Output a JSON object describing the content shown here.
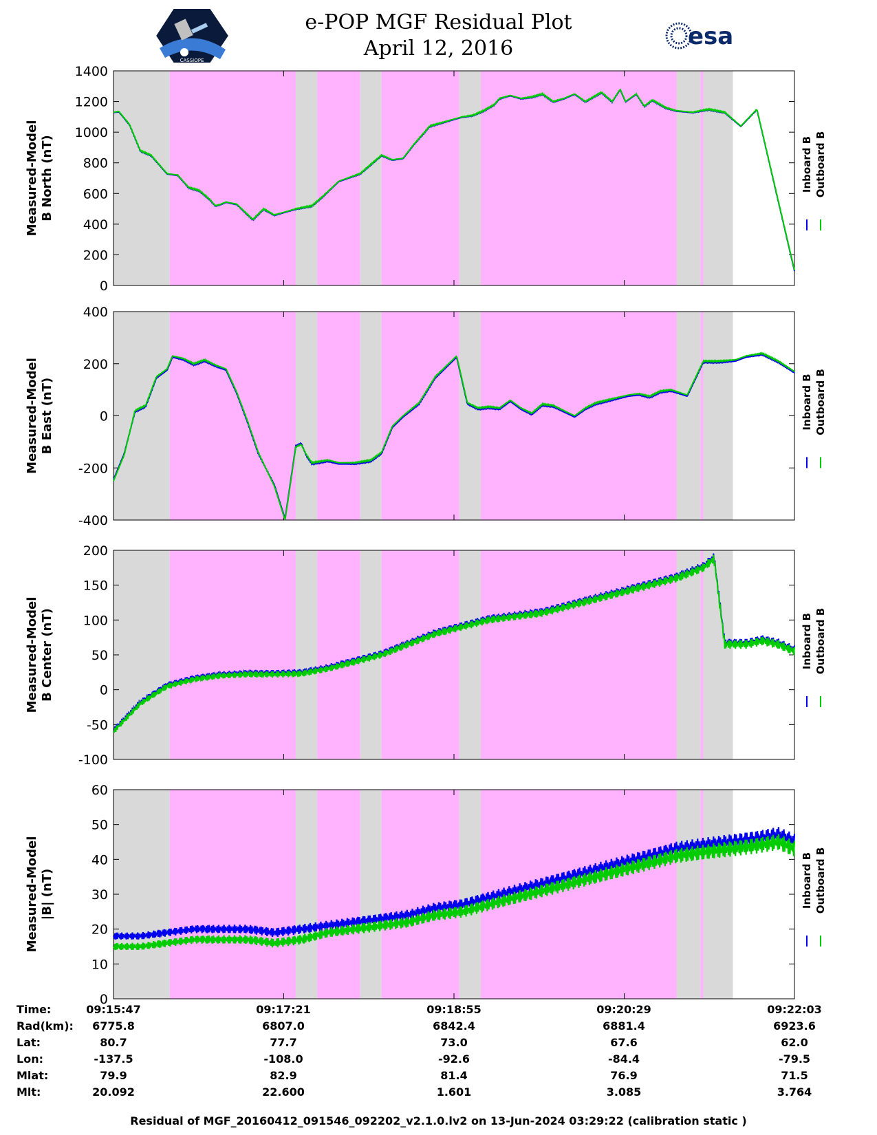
{
  "header": {
    "title_line1": "e-POP MGF Residual Plot",
    "title_line2": "April 12, 2016",
    "esa_logo_text": "esa",
    "cassiope_logo_text": "CASSIOPE",
    "logo_icons": [
      "cassiope-mission-logo",
      "esa-logo"
    ]
  },
  "colors": {
    "inboard": "#0000ee",
    "outboard": "#00cc00",
    "background_grey": "#d9d9d9",
    "background_pink": "#ffb3ff"
  },
  "legend": {
    "inboard_label": "Inboard B",
    "outboard_label": "Outboard B"
  },
  "chart_data": [
    {
      "type": "line",
      "title": "",
      "ylabel_line1": "Measured-Model",
      "ylabel_line2": "B North (nT)",
      "ylim": [
        0,
        1400
      ],
      "yticks": [
        "0",
        "200",
        "400",
        "600",
        "800",
        "1000",
        "1200",
        "1400"
      ],
      "x_minutes": [
        0,
        0.1,
        0.3,
        0.5,
        0.7,
        1.0,
        1.2,
        1.4,
        1.6,
        1.8,
        1.9,
        2.0,
        2.1,
        2.3,
        2.6,
        2.8,
        3.0,
        3.2,
        3.4,
        3.7,
        3.9,
        4.2,
        4.6,
        5.0,
        5.2,
        5.4,
        5.6,
        5.9,
        6.1,
        6.3,
        6.5,
        6.7,
        6.9,
        7.1,
        7.2,
        7.4,
        7.6,
        7.8,
        8.0,
        8.2,
        8.4,
        8.6,
        8.8,
        9.1,
        9.3,
        9.45,
        9.55,
        9.75,
        9.9,
        10.05,
        10.3,
        10.5,
        10.8,
        11.1,
        11.4,
        11.7,
        12.0,
        12.7
      ],
      "series": [
        {
          "name": "Inboard B",
          "values": [
            1130,
            1135,
            1050,
            880,
            850,
            730,
            720,
            640,
            620,
            560,
            520,
            530,
            545,
            530,
            430,
            500,
            460,
            480,
            500,
            520,
            580,
            680,
            730,
            850,
            820,
            830,
            920,
            1040,
            1060,
            1080,
            1100,
            1110,
            1140,
            1180,
            1220,
            1240,
            1220,
            1230,
            1250,
            1200,
            1220,
            1250,
            1200,
            1260,
            1200,
            1280,
            1200,
            1250,
            1170,
            1210,
            1160,
            1140,
            1130,
            1150,
            1130,
            1040,
            1150,
            100
          ]
        },
        {
          "name": "Outboard B",
          "values": [
            1128,
            1132,
            1047,
            877,
            847,
            727,
            717,
            637,
            617,
            557,
            517,
            527,
            542,
            527,
            427,
            497,
            457,
            477,
            497,
            517,
            577,
            677,
            727,
            847,
            817,
            827,
            917,
            1037,
            1057,
            1077,
            1097,
            1107,
            1137,
            1177,
            1217,
            1237,
            1217,
            1227,
            1247,
            1197,
            1217,
            1247,
            1197,
            1257,
            1197,
            1277,
            1197,
            1247,
            1167,
            1207,
            1157,
            1137,
            1127,
            1147,
            1127,
            1037,
            1147,
            95
          ]
        }
      ]
    },
    {
      "type": "line",
      "title": "",
      "ylabel_line1": "Measured-Model",
      "ylabel_line2": "B East (nT)",
      "ylim": [
        -400,
        400
      ],
      "yticks": [
        "-400",
        "-200",
        "0",
        "200",
        "400"
      ],
      "x_minutes": [
        0,
        0.2,
        0.4,
        0.6,
        0.8,
        1.0,
        1.1,
        1.3,
        1.5,
        1.7,
        1.9,
        2.1,
        2.3,
        2.5,
        2.7,
        3.0,
        3.2,
        3.4,
        3.5,
        3.6,
        3.7,
        4.0,
        4.2,
        4.5,
        4.8,
        5.0,
        5.2,
        5.4,
        5.7,
        6.0,
        6.4,
        6.6,
        6.8,
        7.0,
        7.2,
        7.4,
        7.6,
        7.8,
        8.0,
        8.2,
        8.4,
        8.6,
        8.8,
        9.0,
        9.2,
        9.4,
        9.6,
        9.8,
        10.0,
        10.2,
        10.4,
        10.7,
        11.0,
        11.3,
        11.6,
        11.8,
        12.1,
        12.4,
        12.7
      ],
      "series": [
        {
          "name": "Inboard B",
          "values": [
            -250,
            -150,
            20,
            40,
            150,
            180,
            230,
            220,
            200,
            215,
            195,
            180,
            90,
            -20,
            -140,
            -270,
            -400,
            -120,
            -110,
            -150,
            -180,
            -170,
            -180,
            -180,
            -170,
            -140,
            -40,
            0,
            50,
            150,
            230,
            50,
            30,
            35,
            30,
            60,
            30,
            10,
            45,
            40,
            20,
            0,
            30,
            50,
            60,
            70,
            80,
            85,
            75,
            95,
            100,
            80,
            210,
            210,
            215,
            230,
            240,
            210,
            170
          ]
        },
        {
          "name": "Outboard B",
          "values": [
            -245,
            -145,
            15,
            35,
            145,
            175,
            225,
            215,
            195,
            210,
            190,
            175,
            85,
            -25,
            -145,
            -265,
            -395,
            -115,
            -105,
            -155,
            -185,
            -175,
            -185,
            -185,
            -175,
            -145,
            -45,
            -5,
            45,
            145,
            225,
            45,
            25,
            30,
            25,
            55,
            25,
            5,
            40,
            35,
            15,
            -5,
            25,
            45,
            55,
            65,
            75,
            80,
            70,
            90,
            95,
            75,
            205,
            205,
            210,
            225,
            235,
            205,
            165
          ]
        }
      ]
    },
    {
      "type": "line",
      "title": "",
      "ylabel_line1": "Measured-Model",
      "ylabel_line2": "B Center (nT)",
      "ylim": [
        -100,
        200
      ],
      "yticks": [
        "-100",
        "-50",
        "0",
        "50",
        "100",
        "150",
        "200"
      ],
      "x_minutes": [
        0,
        0.5,
        1.0,
        1.5,
        2.0,
        2.5,
        3.0,
        3.5,
        4.0,
        4.5,
        5.0,
        5.5,
        6.0,
        6.5,
        7.0,
        7.5,
        8.0,
        8.5,
        9.0,
        9.5,
        10.0,
        10.5,
        11.0,
        11.2,
        11.4,
        11.6,
        11.8,
        12.1,
        12.4,
        12.7
      ],
      "series": [
        {
          "name": "Inboard B",
          "values": [
            -60,
            -20,
            5,
            15,
            20,
            22,
            22,
            23,
            30,
            40,
            50,
            65,
            80,
            90,
            100,
            105,
            110,
            120,
            130,
            140,
            150,
            160,
            175,
            188,
            65,
            65,
            65,
            70,
            65,
            55
          ]
        },
        {
          "name": "Outboard B",
          "values": [
            -58,
            -18,
            7,
            17,
            22,
            24,
            24,
            25,
            32,
            42,
            52,
            67,
            82,
            92,
            102,
            107,
            112,
            122,
            132,
            142,
            152,
            162,
            177,
            190,
            67,
            67,
            67,
            72,
            67,
            57
          ]
        }
      ]
    },
    {
      "type": "line",
      "title": "",
      "ylabel_line1": "Measured-Model",
      "ylabel_line2": "|B| (nT)",
      "ylim": [
        0,
        60
      ],
      "yticks": [
        "0",
        "10",
        "20",
        "30",
        "40",
        "50",
        "60"
      ],
      "x_minutes": [
        0,
        0.5,
        1.0,
        1.5,
        2.0,
        2.5,
        3.0,
        3.5,
        4.0,
        4.5,
        5.0,
        5.5,
        6.0,
        6.5,
        7.0,
        7.5,
        8.0,
        8.5,
        9.0,
        9.5,
        10.0,
        10.5,
        11.0,
        11.5,
        12.0,
        12.4,
        12.7
      ],
      "series": [
        {
          "name": "Inboard B",
          "values": [
            15,
            15,
            16,
            17,
            17,
            17,
            16,
            17,
            19,
            20,
            21,
            22,
            24,
            25,
            27,
            29,
            31,
            33,
            35,
            37,
            39,
            41,
            42,
            43,
            44,
            45,
            43
          ]
        },
        {
          "name": "Outboard B",
          "values": [
            18,
            18,
            19,
            20,
            20,
            20,
            19,
            20,
            21,
            22,
            23,
            24,
            26,
            27,
            29,
            31,
            33,
            35,
            37,
            39,
            41,
            43,
            44,
            45,
            46,
            47,
            45
          ]
        }
      ]
    }
  ],
  "info_table": {
    "labels": [
      "Time:",
      "Rad(km):",
      "Lat:",
      "Lon:",
      "Mlat:",
      "Mlt:"
    ],
    "columns": [
      [
        "09:15:47",
        "6775.8",
        "80.7",
        "-137.5",
        "79.9",
        "20.092"
      ],
      [
        "09:17:21",
        "6807.0",
        "77.7",
        "-108.0",
        "82.9",
        "22.600"
      ],
      [
        "09:18:55",
        "6842.4",
        "73.0",
        "-92.6",
        "81.4",
        "1.601"
      ],
      [
        "09:20:29",
        "6881.4",
        "67.6",
        "-84.4",
        "76.9",
        "3.085"
      ],
      [
        "09:22:03",
        "6923.6",
        "62.0",
        "-79.5",
        "71.5",
        "3.764"
      ]
    ]
  },
  "footer": {
    "text": "Residual of MGF_20160412_091546_092202_v2.1.0.lv2 on 13-Jun-2024 03:29:22 (calibration static )"
  }
}
